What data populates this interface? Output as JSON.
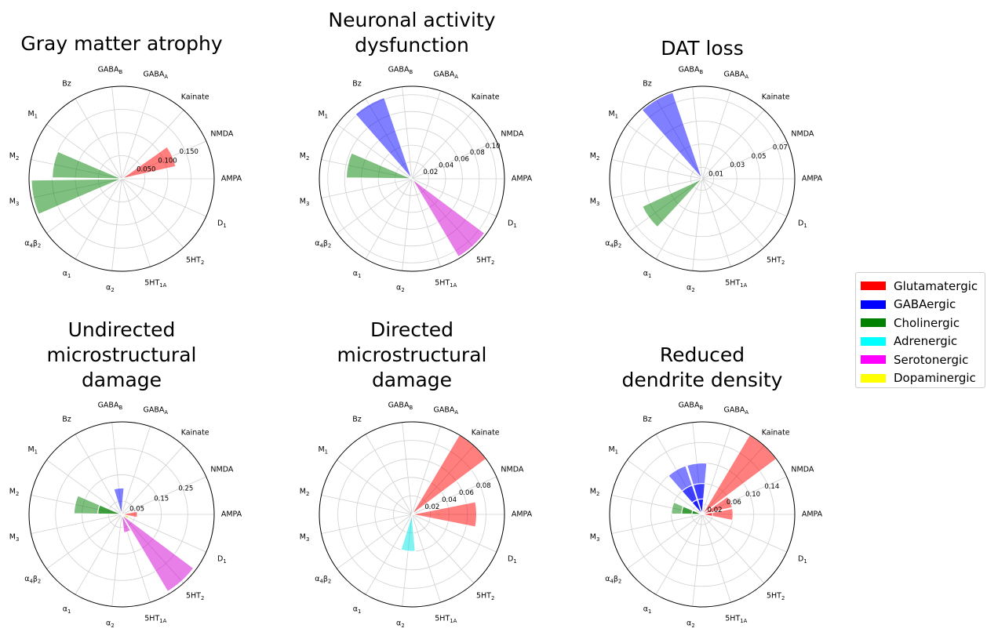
{
  "receptor_labels": [
    "AMPA",
    "NMDA",
    "Kainate",
    "GABA_A",
    "GABA_B",
    "Bz",
    "M_1",
    "M_2",
    "M_3",
    "α_4β_2",
    "α_1",
    "α_2",
    "5HT_1A",
    "5HT_2",
    "D_1"
  ],
  "group_colors": {
    "Glutamatergic": "#ff0000",
    "GABAergic": "#0000ff",
    "Cholinergic": "#008000",
    "Adrenergic": "#00e5e5",
    "Serotonergic": "#d200d2",
    "Dopaminergic": "#e5e500"
  },
  "legend": {
    "items": [
      {
        "label": "Glutamatergic",
        "color": "#ff0000"
      },
      {
        "label": "GABAergic",
        "color": "#0000ff"
      },
      {
        "label": "Cholinergic",
        "color": "#008000"
      },
      {
        "label": "Adrenergic",
        "color": "#00ffff"
      },
      {
        "label": "Serotonergic",
        "color": "#ff00ff"
      },
      {
        "label": "Dopaminergic",
        "color": "#ffff00"
      }
    ]
  },
  "chart_data": [
    {
      "type": "polar-bar",
      "title": [
        "Gray matter atrophy"
      ],
      "rlim": [
        0,
        0.2
      ],
      "rticks": [
        0.05,
        0.1,
        0.15
      ],
      "rtick_labels": [
        "0.050",
        "0.100",
        "0.150"
      ],
      "layers": [
        [
          {
            "receptor": "NMDA",
            "value": 0.12,
            "group": "Glutamatergic"
          },
          {
            "receptor": "M_2",
            "value": 0.15,
            "group": "Cholinergic"
          },
          {
            "receptor": "M_3",
            "value": 0.195,
            "group": "Cholinergic"
          }
        ]
      ]
    },
    {
      "type": "polar-bar",
      "title": [
        "Neuronal activity",
        "dysfunction"
      ],
      "rlim": [
        0,
        0.11
      ],
      "rticks": [
        0.02,
        0.04,
        0.06,
        0.08,
        0.1
      ],
      "rtick_labels": [
        "0.02",
        "0.04",
        "0.06",
        "0.08",
        "0.10"
      ],
      "layers": [
        [
          {
            "receptor": "Bz",
            "value": 0.102,
            "group": "GABAergic"
          },
          {
            "receptor": "M_2",
            "value": 0.078,
            "group": "Cholinergic"
          },
          {
            "receptor": "5HT_2",
            "value": 0.108,
            "group": "Serotonergic"
          }
        ]
      ]
    },
    {
      "type": "polar-bar",
      "title": [
        "DAT loss"
      ],
      "rlim": [
        0,
        0.08
      ],
      "rticks": [
        0.01,
        0.03,
        0.05,
        0.07
      ],
      "rtick_labels": [
        "0.01",
        "0.03",
        "0.05",
        "0.07"
      ],
      "layers": [
        [
          {
            "receptor": "Bz",
            "value": 0.079,
            "group": "GABAergic"
          },
          {
            "receptor": "α_4β_2",
            "value": 0.057,
            "group": "Cholinergic"
          }
        ]
      ]
    },
    {
      "type": "polar-bar",
      "title": [
        "Undirected",
        "microstructural",
        "damage"
      ],
      "rlim": [
        0,
        0.35
      ],
      "rticks": [
        0.05,
        0.15,
        0.25
      ],
      "rtick_labels": [
        "0.05",
        "0.15",
        "0.25"
      ],
      "layers": [
        [
          {
            "receptor": "AMPA",
            "value": 0.06,
            "group": "Glutamatergic"
          },
          {
            "receptor": "GABA_B",
            "value": 0.1,
            "group": "GABAergic"
          },
          {
            "receptor": "M_2",
            "value": 0.18,
            "group": "Cholinergic"
          },
          {
            "receptor": "5HT_2",
            "value": 0.34,
            "group": "Serotonergic"
          },
          {
            "receptor": "D_1",
            "value": 0.03,
            "group": "Dopaminergic"
          }
        ],
        [
          {
            "receptor": "M_2",
            "value": 0.09,
            "group": "Cholinergic"
          },
          {
            "receptor": "5HT_1A",
            "value": 0.07,
            "group": "Serotonergic"
          }
        ]
      ]
    },
    {
      "type": "polar-bar",
      "title": [
        "Directed",
        "microstructural",
        "damage"
      ],
      "rlim": [
        0,
        0.1
      ],
      "rticks": [
        0.02,
        0.04,
        0.06,
        0.08
      ],
      "rtick_labels": [
        "0.02",
        "0.04",
        "0.06",
        "0.08"
      ],
      "layers": [
        [
          {
            "receptor": "AMPA",
            "value": 0.07,
            "group": "Glutamatergic"
          },
          {
            "receptor": "Kainate",
            "value": 0.1,
            "group": "Glutamatergic"
          },
          {
            "receptor": "α_2",
            "value": 0.04,
            "group": "Adrenergic"
          }
        ]
      ]
    },
    {
      "type": "polar-bar",
      "title": [
        "Reduced",
        "dendrite density"
      ],
      "rlim": [
        0,
        0.18
      ],
      "rticks": [
        0.02,
        0.06,
        0.1,
        0.14
      ],
      "rtick_labels": [
        "0.02",
        "0.06",
        "0.10",
        "0.14"
      ],
      "layers": [
        [
          {
            "receptor": "AMPA",
            "value": 0.06,
            "group": "Glutamatergic"
          },
          {
            "receptor": "Kainate",
            "value": 0.18,
            "group": "Glutamatergic"
          },
          {
            "receptor": "GABA_B",
            "value": 0.1,
            "group": "GABAergic"
          },
          {
            "receptor": "Bz",
            "value": 0.1,
            "group": "GABAergic"
          },
          {
            "receptor": "M_2",
            "value": 0.06,
            "group": "Cholinergic"
          }
        ],
        [
          {
            "receptor": "NMDA",
            "value": 0.06,
            "group": "Glutamatergic"
          },
          {
            "receptor": "GABA_B",
            "value": 0.06,
            "group": "GABAergic"
          },
          {
            "receptor": "Bz",
            "value": 0.06,
            "group": "GABAergic"
          },
          {
            "receptor": "M_2",
            "value": 0.04,
            "group": "Cholinergic"
          }
        ],
        [
          {
            "receptor": "AMPA",
            "value": 0.02,
            "group": "Glutamatergic"
          },
          {
            "receptor": "GABA_B",
            "value": 0.03,
            "group": "GABAergic"
          },
          {
            "receptor": "Bz",
            "value": 0.03,
            "group": "GABAergic"
          },
          {
            "receptor": "M_2",
            "value": 0.02,
            "group": "Cholinergic"
          }
        ]
      ]
    }
  ]
}
